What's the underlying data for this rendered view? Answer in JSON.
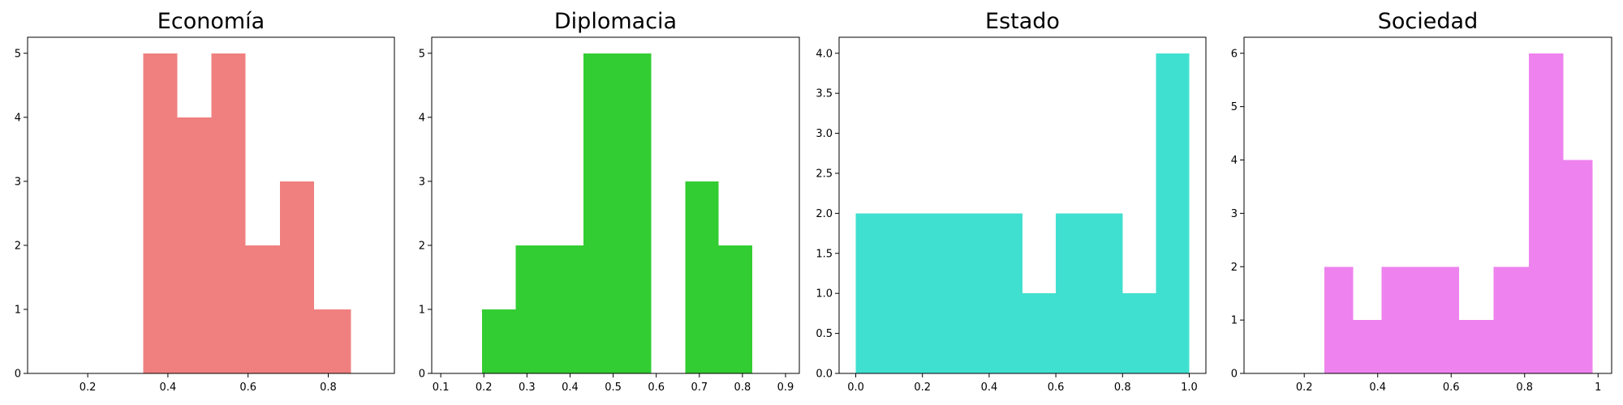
{
  "chart_data": [
    {
      "type": "bar",
      "title": "Economía",
      "color": "#F08080",
      "xlim": [
        0.05,
        0.965
      ],
      "ylim": [
        0,
        5.25
      ],
      "xticks": [
        0.2,
        0.4,
        0.6,
        0.8
      ],
      "yticks": [
        0,
        1,
        2,
        3,
        4,
        5
      ],
      "bins": [
        {
          "x0": 0.338,
          "x1": 0.423,
          "value": 5
        },
        {
          "x0": 0.423,
          "x1": 0.509,
          "value": 4
        },
        {
          "x0": 0.509,
          "x1": 0.594,
          "value": 5
        },
        {
          "x0": 0.594,
          "x1": 0.68,
          "value": 2
        },
        {
          "x0": 0.68,
          "x1": 0.765,
          "value": 3
        },
        {
          "x0": 0.765,
          "x1": 0.857,
          "value": 1
        }
      ]
    },
    {
      "type": "bar",
      "title": "Diplomacia",
      "color": "#32CD32",
      "xlim": [
        0.079,
        0.932
      ],
      "ylim": [
        0,
        5.25
      ],
      "xticks": [
        0.1,
        0.2,
        0.3,
        0.4,
        0.5,
        0.6,
        0.7,
        0.8,
        0.9
      ],
      "yticks": [
        0,
        1,
        2,
        3,
        4,
        5
      ],
      "bins": [
        {
          "x0": 0.196,
          "x1": 0.274,
          "value": 1
        },
        {
          "x0": 0.274,
          "x1": 0.353,
          "value": 2
        },
        {
          "x0": 0.353,
          "x1": 0.431,
          "value": 2
        },
        {
          "x0": 0.431,
          "x1": 0.51,
          "value": 5
        },
        {
          "x0": 0.51,
          "x1": 0.588,
          "value": 5
        },
        {
          "x0": 0.588,
          "x1": 0.667,
          "value": 0
        },
        {
          "x0": 0.667,
          "x1": 0.745,
          "value": 3
        },
        {
          "x0": 0.745,
          "x1": 0.823,
          "value": 2
        }
      ]
    },
    {
      "type": "bar",
      "title": "Estado",
      "color": "#40E0D0",
      "xlim": [
        -0.05,
        1.05
      ],
      "ylim": [
        0,
        4.2
      ],
      "xticks": [
        0.0,
        0.2,
        0.4,
        0.6,
        0.8,
        1.0
      ],
      "yticks": [
        0.0,
        0.5,
        1.0,
        1.5,
        2.0,
        2.5,
        3.0,
        3.5,
        4.0
      ],
      "tick_decimals": 1,
      "bins": [
        {
          "x0": 0.0,
          "x1": 0.1,
          "value": 2
        },
        {
          "x0": 0.1,
          "x1": 0.2,
          "value": 2
        },
        {
          "x0": 0.2,
          "x1": 0.3,
          "value": 2
        },
        {
          "x0": 0.3,
          "x1": 0.4,
          "value": 2
        },
        {
          "x0": 0.4,
          "x1": 0.5,
          "value": 2
        },
        {
          "x0": 0.5,
          "x1": 0.6,
          "value": 1
        },
        {
          "x0": 0.6,
          "x1": 0.7,
          "value": 2
        },
        {
          "x0": 0.7,
          "x1": 0.8,
          "value": 2
        },
        {
          "x0": 0.8,
          "x1": 0.9,
          "value": 1
        },
        {
          "x0": 0.9,
          "x1": 1.0,
          "value": 4
        }
      ]
    },
    {
      "type": "bar",
      "title": "Sociedad",
      "color": "#EE82EE",
      "xlim": [
        0.036,
        1.037
      ],
      "ylim": [
        0,
        6.3
      ],
      "xticks": [
        0.2,
        0.4,
        0.6,
        0.8,
        1.0
      ],
      "yticks": [
        0,
        1,
        2,
        3,
        4,
        5,
        6
      ],
      "bins": [
        {
          "x0": 0.255,
          "x1": 0.333,
          "value": 2
        },
        {
          "x0": 0.333,
          "x1": 0.411,
          "value": 1
        },
        {
          "x0": 0.411,
          "x1": 0.493,
          "value": 2
        },
        {
          "x0": 0.493,
          "x1": 0.622,
          "value": 2
        },
        {
          "x0": 0.622,
          "x1": 0.715,
          "value": 1
        },
        {
          "x0": 0.715,
          "x1": 0.812,
          "value": 2
        },
        {
          "x0": 0.812,
          "x1": 0.905,
          "value": 6
        },
        {
          "x0": 0.905,
          "x1": 0.985,
          "value": 4
        }
      ]
    }
  ]
}
